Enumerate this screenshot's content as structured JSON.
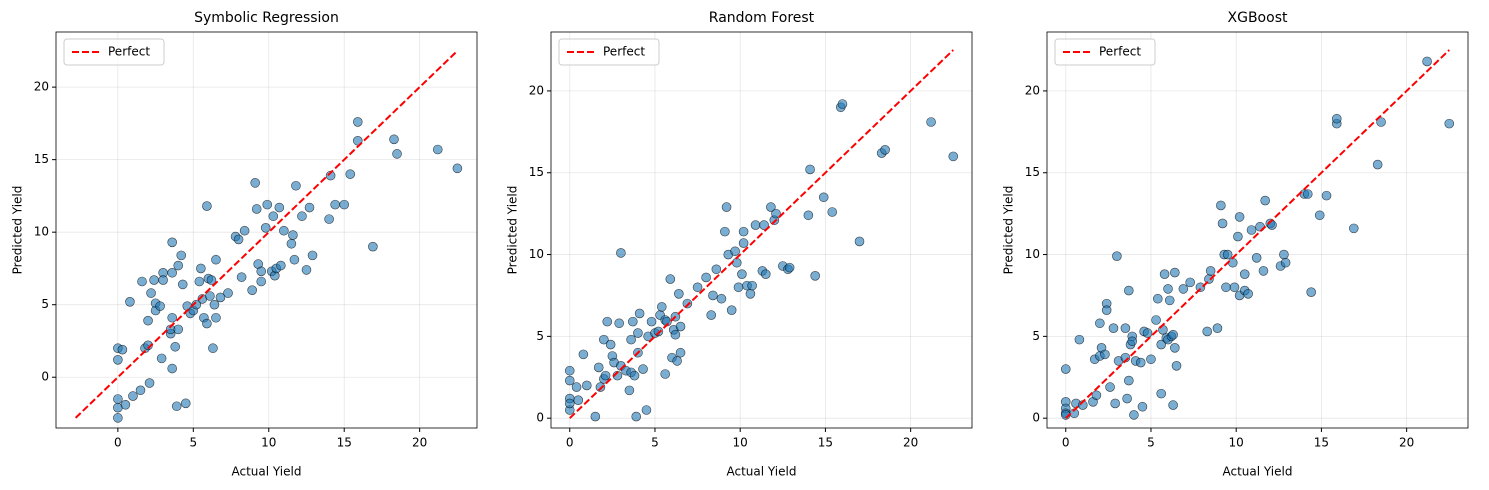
{
  "chart_data": [
    {
      "type": "scatter",
      "title": "Symbolic Regression",
      "xlabel": "Actual Yield",
      "ylabel": "Predicted Yield",
      "color": "#1f77b4",
      "x": [
        0,
        0,
        0,
        0,
        0,
        0.3,
        0.5,
        0.8,
        1.0,
        1.5,
        1.6,
        1.8,
        2.0,
        2.0,
        2.1,
        2.2,
        2.4,
        2.5,
        2.5,
        2.8,
        2.9,
        3.0,
        3.0,
        3.5,
        3.5,
        3.6,
        3.6,
        3.6,
        3.6,
        3.8,
        3.9,
        4.0,
        4.0,
        4.2,
        4.3,
        4.5,
        4.6,
        4.8,
        5.0,
        5.2,
        5.4,
        5.5,
        5.6,
        5.7,
        5.9,
        5.9,
        6.0,
        6.1,
        6.2,
        6.3,
        6.4,
        6.5,
        6.5,
        6.8,
        7.3,
        7.8,
        8.0,
        8.2,
        8.4,
        8.9,
        9.1,
        9.2,
        9.3,
        9.5,
        9.5,
        9.8,
        9.9,
        10.2,
        10.3,
        10.4,
        10.5,
        10.7,
        10.8,
        11.0,
        11.5,
        11.6,
        11.7,
        11.8,
        12.2,
        12.5,
        12.7,
        12.9,
        14.0,
        14.1,
        14.4,
        15.0,
        15.4,
        15.9,
        15.9,
        16.9,
        18.3,
        18.5,
        21.2,
        22.5
      ],
      "y": [
        2.0,
        1.2,
        -1.5,
        -2.1,
        -2.8,
        1.9,
        -1.9,
        5.2,
        -1.3,
        -0.9,
        6.6,
        2.0,
        2.2,
        3.9,
        -0.4,
        5.8,
        6.7,
        5.1,
        4.6,
        4.9,
        1.3,
        7.2,
        6.7,
        3.0,
        3.3,
        9.3,
        7.2,
        4.1,
        0.6,
        2.1,
        -2.0,
        7.7,
        3.3,
        8.4,
        6.4,
        -1.8,
        4.9,
        4.4,
        4.6,
        5.0,
        6.6,
        7.5,
        5.4,
        4.1,
        11.8,
        3.7,
        6.8,
        5.6,
        6.7,
        2.0,
        5.0,
        4.1,
        8.1,
        5.5,
        5.8,
        9.7,
        9.5,
        6.9,
        10.1,
        6.0,
        13.4,
        11.6,
        7.8,
        6.6,
        7.3,
        10.3,
        11.9,
        7.3,
        11.1,
        7.0,
        7.5,
        11.7,
        7.7,
        10.1,
        9.2,
        9.8,
        8.1,
        13.2,
        11.1,
        7.4,
        11.7,
        8.4,
        10.9,
        13.9,
        11.9,
        11.9,
        14.0,
        17.6,
        16.3,
        9.0,
        16.4,
        15.4,
        15.7,
        14.4
      ],
      "reference_line": {
        "name": "Perfect",
        "color": "#ff0000",
        "x": [
          -2.8,
          22.5
        ],
        "y": [
          -2.8,
          22.5
        ]
      },
      "xlim": [
        -4.1,
        23.8
      ],
      "ylim": [
        -3.5,
        23.8
      ],
      "xticks": [
        0,
        5,
        10,
        15,
        20
      ],
      "yticks": [
        0,
        5,
        10,
        15,
        20
      ],
      "grid": true,
      "legend": "upper left"
    },
    {
      "type": "scatter",
      "title": "Random Forest",
      "xlabel": "Actual Yield",
      "ylabel": "Predicted Yield",
      "color": "#1f77b4",
      "x": [
        0,
        0,
        0,
        0,
        0,
        0.4,
        0.5,
        0.8,
        1.0,
        1.5,
        1.7,
        1.8,
        2.0,
        2.0,
        2.1,
        2.2,
        2.4,
        2.5,
        2.6,
        2.8,
        2.9,
        3.0,
        3.0,
        3.3,
        3.5,
        3.6,
        3.6,
        3.7,
        3.8,
        3.9,
        4.0,
        4.0,
        4.1,
        4.3,
        4.5,
        4.6,
        4.8,
        5.0,
        5.2,
        5.3,
        5.4,
        5.6,
        5.6,
        5.7,
        5.9,
        6.0,
        6.1,
        6.2,
        6.2,
        6.3,
        6.4,
        6.5,
        6.5,
        6.9,
        7.5,
        8.0,
        8.3,
        8.4,
        8.6,
        8.9,
        9.1,
        9.2,
        9.3,
        9.5,
        9.7,
        9.8,
        9.9,
        10.1,
        10.2,
        10.2,
        10.4,
        10.6,
        10.7,
        10.9,
        11.3,
        11.4,
        11.5,
        11.8,
        12.0,
        12.1,
        12.5,
        12.8,
        12.9,
        14.0,
        14.1,
        14.4,
        14.9,
        15.4,
        15.9,
        16.0,
        17.0,
        18.3,
        18.5,
        21.2,
        22.5
      ],
      "y": [
        2.9,
        2.3,
        1.2,
        0.5,
        0.9,
        1.9,
        1.1,
        3.9,
        2.0,
        0.1,
        3.1,
        1.9,
        2.4,
        4.8,
        2.6,
        5.9,
        4.5,
        3.8,
        3.4,
        2.6,
        5.8,
        10.1,
        3.2,
        2.9,
        1.7,
        4.8,
        2.8,
        5.9,
        2.6,
        0.1,
        5.2,
        4.0,
        6.4,
        3.0,
        0.5,
        5.0,
        5.9,
        5.2,
        5.3,
        6.3,
        6.8,
        2.7,
        6.0,
        5.9,
        8.5,
        3.7,
        5.4,
        6.2,
        5.1,
        3.5,
        7.6,
        5.6,
        4.0,
        7.0,
        8.0,
        8.6,
        6.3,
        7.5,
        9.1,
        7.3,
        11.4,
        12.9,
        10.0,
        6.6,
        10.2,
        9.5,
        8.0,
        8.8,
        11.4,
        10.7,
        8.1,
        7.6,
        8.1,
        11.8,
        9.0,
        11.8,
        8.8,
        12.9,
        12.1,
        12.5,
        9.3,
        9.1,
        9.2,
        12.4,
        15.2,
        8.7,
        13.5,
        12.6,
        19.0,
        19.2,
        10.8,
        16.2,
        16.4,
        18.1,
        16.0
      ],
      "reference_line": {
        "name": "Perfect",
        "color": "#ff0000",
        "x": [
          0,
          22.5
        ],
        "y": [
          0,
          22.5
        ]
      },
      "xlim": [
        -1.1,
        23.6
      ],
      "ylim": [
        -0.6,
        23.6
      ],
      "xticks": [
        0,
        5,
        10,
        15,
        20
      ],
      "yticks": [
        0,
        5,
        10,
        15,
        20
      ],
      "grid": true,
      "legend": "upper left"
    },
    {
      "type": "scatter",
      "title": "XGBoost",
      "xlabel": "Actual Yield",
      "ylabel": "Predicted Yield",
      "color": "#1f77b4",
      "x": [
        0,
        0,
        0,
        0,
        0,
        0.5,
        0.6,
        0.8,
        1.0,
        1.6,
        1.7,
        1.8,
        2.0,
        2.0,
        2.1,
        2.3,
        2.4,
        2.4,
        2.6,
        2.8,
        2.9,
        3.0,
        3.1,
        3.5,
        3.5,
        3.6,
        3.7,
        3.7,
        3.8,
        3.9,
        3.9,
        4.0,
        4.1,
        4.4,
        4.5,
        4.6,
        4.8,
        5.0,
        5.3,
        5.4,
        5.6,
        5.6,
        5.7,
        5.8,
        5.9,
        6.0,
        6.0,
        6.1,
        6.2,
        6.3,
        6.3,
        6.4,
        6.4,
        6.5,
        6.9,
        7.3,
        7.9,
        8.3,
        8.4,
        8.5,
        8.9,
        9.1,
        9.2,
        9.3,
        9.4,
        9.5,
        9.8,
        9.9,
        10.1,
        10.2,
        10.2,
        10.5,
        10.5,
        10.7,
        10.9,
        11.2,
        11.4,
        11.6,
        11.7,
        12.0,
        12.1,
        12.6,
        12.8,
        12.9,
        14.0,
        14.2,
        14.4,
        14.9,
        15.3,
        15.9,
        15.9,
        16.9,
        18.3,
        18.5,
        21.2,
        22.5
      ],
      "y": [
        3.0,
        1.0,
        0.6,
        0.3,
        0.2,
        0.3,
        0.9,
        4.8,
        0.8,
        1.0,
        3.6,
        1.4,
        3.8,
        5.8,
        4.3,
        3.9,
        7.0,
        6.6,
        1.9,
        5.5,
        0.9,
        9.9,
        3.5,
        5.5,
        3.7,
        1.2,
        2.3,
        7.8,
        4.5,
        5.0,
        4.7,
        0.2,
        3.5,
        3.4,
        0.7,
        5.3,
        5.2,
        3.6,
        6.0,
        7.3,
        1.5,
        4.5,
        5.4,
        8.8,
        4.9,
        7.9,
        4.8,
        7.2,
        5.0,
        5.1,
        0.8,
        8.9,
        4.3,
        3.2,
        7.9,
        8.3,
        8.0,
        5.3,
        8.5,
        9.0,
        5.5,
        13.0,
        11.9,
        10.0,
        8.0,
        10.0,
        9.5,
        8.0,
        11.1,
        12.3,
        7.5,
        8.8,
        7.8,
        7.6,
        11.5,
        9.8,
        11.7,
        9.0,
        13.3,
        11.9,
        11.8,
        9.3,
        10.0,
        9.5,
        13.7,
        13.7,
        7.7,
        12.4,
        13.6,
        18.0,
        18.3,
        11.6,
        15.5,
        18.1,
        21.8,
        18.0
      ],
      "reference_line": {
        "name": "Perfect",
        "color": "#ff0000",
        "x": [
          0,
          22.5
        ],
        "y": [
          0,
          22.5
        ]
      },
      "xlim": [
        -1.1,
        23.6
      ],
      "ylim": [
        -0.6,
        23.6
      ],
      "xticks": [
        0,
        5,
        10,
        15,
        20
      ],
      "yticks": [
        0,
        5,
        10,
        15,
        20
      ],
      "grid": true,
      "legend": "upper left"
    }
  ]
}
